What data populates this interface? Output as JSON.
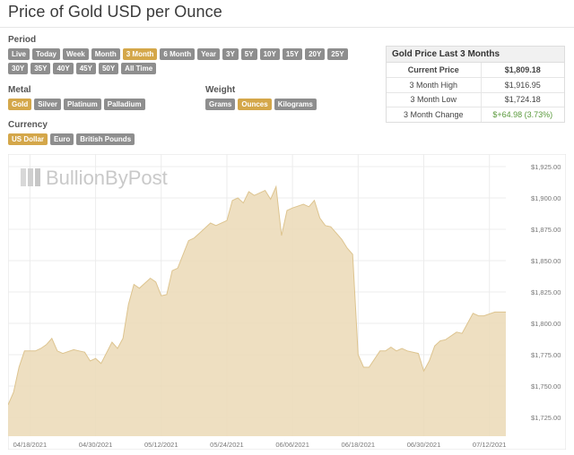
{
  "page": {
    "title": "Price of Gold USD per Ounce"
  },
  "period": {
    "label": "Period",
    "row1": [
      "Live",
      "Today",
      "Week",
      "Month",
      "3 Month",
      "6 Month",
      "Year",
      "3Y",
      "5Y",
      "10Y",
      "15Y",
      "20Y",
      "25Y"
    ],
    "row2": [
      "30Y",
      "35Y",
      "40Y",
      "45Y",
      "50Y",
      "All Time"
    ],
    "active": "3 Month"
  },
  "metal": {
    "label": "Metal",
    "options": [
      "Gold",
      "Silver",
      "Platinum",
      "Palladium"
    ],
    "active": "Gold"
  },
  "weight": {
    "label": "Weight",
    "options": [
      "Grams",
      "Ounces",
      "Kilograms"
    ],
    "active": "Ounces"
  },
  "currency": {
    "label": "Currency",
    "options": [
      "US Dollar",
      "Euro",
      "British Pounds"
    ],
    "active": "US Dollar"
  },
  "stats": {
    "title": "Gold Price Last 3 Months",
    "rows": [
      {
        "label": "Current Price",
        "value": "$1,809.18"
      },
      {
        "label": "3 Month High",
        "value": "$1,916.95"
      },
      {
        "label": "3 Month Low",
        "value": "$1,724.18"
      },
      {
        "label": "3 Month Change",
        "value": "$+64.98 (3.73%)"
      }
    ]
  },
  "colors": {
    "accent": "#d4a74a",
    "button": "#8e8e8e",
    "area_fill": "#ecdcba",
    "area_line": "#ddc48f",
    "positive": "#5a9a3c"
  },
  "chart_data": {
    "type": "area",
    "watermark": "BullionByPost",
    "x_tick_labels": [
      "04/18/2021",
      "04/30/2021",
      "05/12/2021",
      "05/24/2021",
      "06/06/2021",
      "06/18/2021",
      "06/30/2021",
      "07/12/2021"
    ],
    "y_tick_labels": [
      "$1,725.00",
      "$1,750.00",
      "$1,775.00",
      "$1,800.00",
      "$1,825.00",
      "$1,850.00",
      "$1,875.00",
      "$1,900.00",
      "$1,925.00"
    ],
    "ylim": [
      1710,
      1935
    ],
    "xlim": [
      "2021-04-14",
      "2021-07-14"
    ],
    "grid": true,
    "series": [
      {
        "x": [
          "2021-04-14",
          "2021-04-15",
          "2021-04-16",
          "2021-04-17",
          "2021-04-19",
          "2021-04-20",
          "2021-04-21",
          "2021-04-22",
          "2021-04-23",
          "2021-04-24",
          "2021-04-26",
          "2021-04-27",
          "2021-04-28",
          "2021-04-29",
          "2021-04-30",
          "2021-05-01",
          "2021-05-03",
          "2021-05-04",
          "2021-05-05",
          "2021-05-06",
          "2021-05-07",
          "2021-05-08",
          "2021-05-10",
          "2021-05-11",
          "2021-05-12",
          "2021-05-13",
          "2021-05-14",
          "2021-05-15",
          "2021-05-17",
          "2021-05-18",
          "2021-05-19",
          "2021-05-20",
          "2021-05-21",
          "2021-05-22",
          "2021-05-24",
          "2021-05-25",
          "2021-05-26",
          "2021-05-27",
          "2021-05-28",
          "2021-05-29",
          "2021-05-31",
          "2021-06-01",
          "2021-06-02",
          "2021-06-03",
          "2021-06-04",
          "2021-06-05",
          "2021-06-07",
          "2021-06-08",
          "2021-06-09",
          "2021-06-10",
          "2021-06-11",
          "2021-06-12",
          "2021-06-14",
          "2021-06-15",
          "2021-06-16",
          "2021-06-17",
          "2021-06-18",
          "2021-06-19",
          "2021-06-21",
          "2021-06-22",
          "2021-06-23",
          "2021-06-24",
          "2021-06-25",
          "2021-06-26",
          "2021-06-28",
          "2021-06-29",
          "2021-06-30",
          "2021-07-01",
          "2021-07-02",
          "2021-07-03",
          "2021-07-05",
          "2021-07-06",
          "2021-07-07",
          "2021-07-08",
          "2021-07-09",
          "2021-07-10",
          "2021-07-12",
          "2021-07-13",
          "2021-07-14"
        ],
        "y": [
          1735,
          1745,
          1765,
          1778,
          1778,
          1780,
          1783,
          1788,
          1778,
          1776,
          1779,
          1778,
          1777,
          1770,
          1772,
          1768,
          1785,
          1780,
          1788,
          1815,
          1831,
          1828,
          1836,
          1833,
          1822,
          1823,
          1842,
          1844,
          1866,
          1868,
          1872,
          1876,
          1880,
          1878,
          1882,
          1898,
          1900,
          1896,
          1905,
          1902,
          1906,
          1899,
          1909,
          1870,
          1890,
          1892,
          1895,
          1893,
          1898,
          1884,
          1878,
          1877,
          1867,
          1860,
          1855,
          1775,
          1765,
          1765,
          1778,
          1778,
          1781,
          1778,
          1780,
          1778,
          1776,
          1762,
          1770,
          1782,
          1786,
          1787,
          1793,
          1792,
          1800,
          1808,
          1806,
          1806,
          1809,
          1809,
          1809
        ]
      }
    ]
  }
}
